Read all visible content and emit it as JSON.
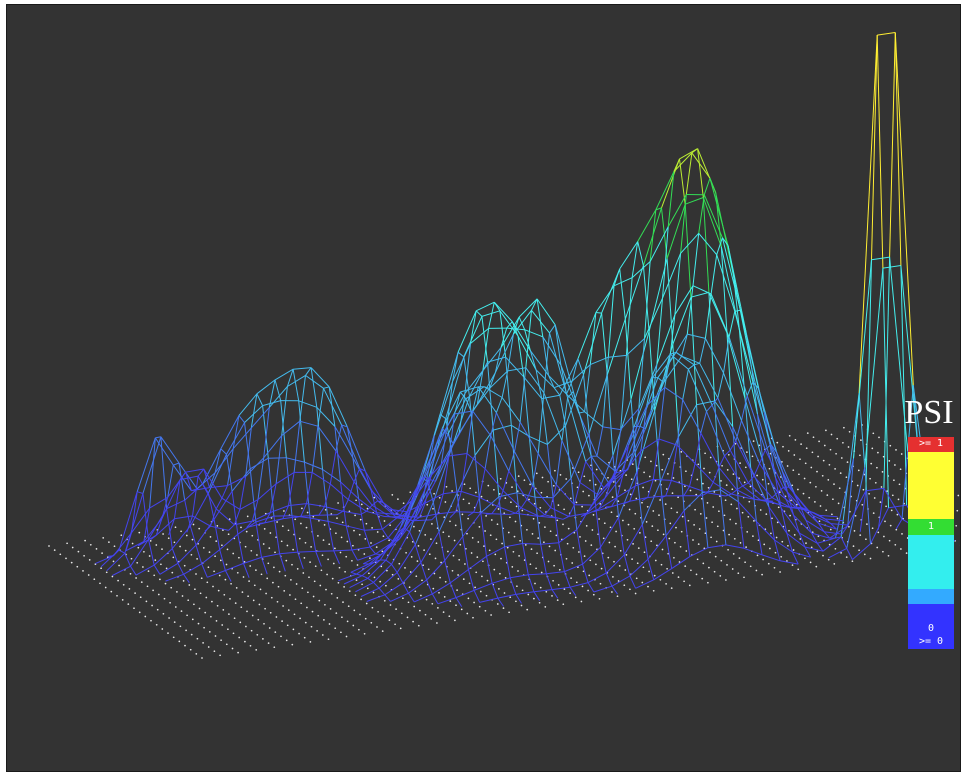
{
  "chart_data": {
    "type": "surface-3d-wireframe",
    "legend": {
      "title": "PSI",
      "labels": {
        "top": ">= 1",
        "one": "1",
        "zero": "0",
        "bottom": ">= 0"
      },
      "colors": {
        "red": "#e53030",
        "yellow": "#ffff33",
        "green": "#33dd33",
        "cyan": "#33eeee",
        "lightblue": "#33aaff",
        "blue": "#3333ff"
      }
    },
    "peaks": [
      {
        "gx": 4.0,
        "gy": 20.5,
        "height": 0.48,
        "sx": 1.4,
        "sy": 1.4
      },
      {
        "gx": 8.5,
        "gy": 18.5,
        "height": 0.52,
        "sx": 3.2,
        "sy": 2.4
      },
      {
        "gx": 6.5,
        "gy": 22.5,
        "height": 0.3,
        "sx": 1.5,
        "sy": 1.4
      },
      {
        "gx": 12.5,
        "gy": 19.5,
        "height": 0.55,
        "sx": 2.8,
        "sy": 2.6
      },
      {
        "gx": 18.5,
        "gy": 8.5,
        "height": 1.0,
        "sx": 3.6,
        "sy": 3.4
      },
      {
        "gx": 22.5,
        "gy": 11.5,
        "height": 0.75,
        "sx": 2.4,
        "sy": 2.2
      },
      {
        "gx": 19.5,
        "gy": 15.0,
        "height": 0.55,
        "sx": 2.8,
        "sy": 2.6
      },
      {
        "gx": 24.5,
        "gy": 6.5,
        "height": 0.8,
        "sx": 2.6,
        "sy": 2.4
      },
      {
        "gx": 28.5,
        "gy": 4.5,
        "height": 1.25,
        "sx": 3.2,
        "sy": 3.0
      },
      {
        "gx": 30.5,
        "gy": 8.0,
        "height": 0.9,
        "sx": 3.4,
        "sy": 3.2
      },
      {
        "gx": 30.0,
        "gy": 13.0,
        "height": 0.55,
        "sx": 2.8,
        "sy": 2.4
      },
      {
        "gx": 38.5,
        "gy": 2.0,
        "height": 2.2,
        "sx": 1.3,
        "sy": 1.3
      }
    ]
  }
}
